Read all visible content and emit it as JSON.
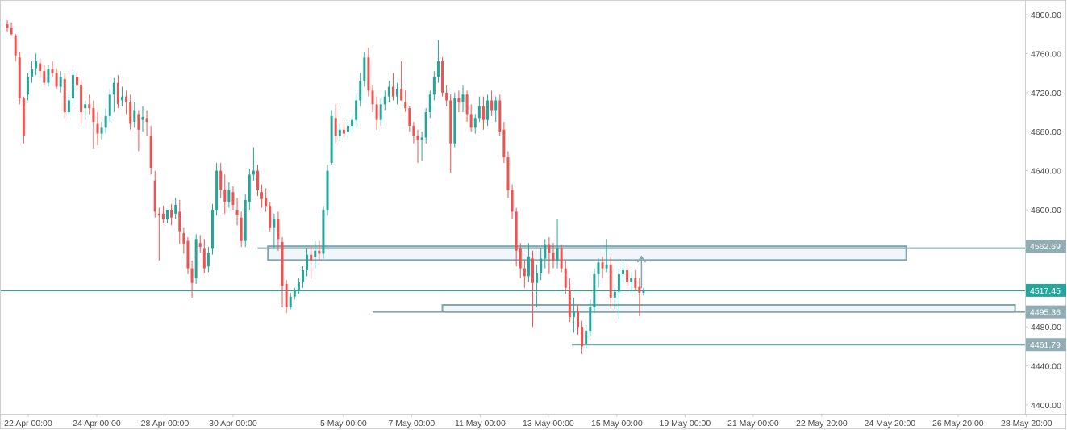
{
  "colors": {
    "up": "#26a69a",
    "down": "#ef5350",
    "line": "#7fa7ad",
    "zone_fill": "#edf2f7",
    "current_line": "#26a69a",
    "badge_line": "#8fadb3",
    "badge_current": "#26a69a",
    "axis_text": "#4a4a4a",
    "axis_border": "#cfcfcf"
  },
  "chart_data": {
    "type": "candlestick",
    "title": "",
    "xlabel": "",
    "ylabel": "",
    "ylim": [
      4395,
      4812
    ],
    "grid": false,
    "y_ticks": [
      "4800.00",
      "4760.00",
      "4720.00",
      "4680.00",
      "4640.00",
      "4600.00",
      "4560.00",
      "4520.00",
      "4480.00",
      "4440.00",
      "4400.00"
    ],
    "x_ticks": [
      "22 Apr 00:00",
      "24 Apr 00:00",
      "28 Apr 00:00",
      "30 Apr 00:00",
      "5 May 00:00",
      "7 May 00:00",
      "11 May 00:00",
      "13 May 00:00",
      "15 May 00:00",
      "19 May 00:00",
      "21 May 00:00",
      "22 May 20:00",
      "24 May 20:00",
      "26 May 20:00",
      "28 May 20:00"
    ],
    "x_tick_bars": [
      5.1,
      21.8,
      38.4,
      55.0,
      81.9,
      98.5,
      115.2,
      131.8,
      148.5,
      165.1,
      181.7,
      198.4,
      215.0,
      231.6,
      248.3
    ],
    "candles": [
      [
        4790,
        4794,
        4782,
        4786
      ],
      [
        4786,
        4792,
        4778,
        4780
      ],
      [
        4778,
        4780,
        4752,
        4758
      ],
      [
        4756,
        4762,
        4708,
        4714
      ],
      [
        4714,
        4716,
        4668,
        4676
      ],
      [
        4718,
        4740,
        4712,
        4736
      ],
      [
        4736,
        4752,
        4730,
        4744
      ],
      [
        4745,
        4760,
        4738,
        4752
      ],
      [
        4750,
        4755,
        4735,
        4742
      ],
      [
        4742,
        4748,
        4728,
        4730
      ],
      [
        4730,
        4748,
        4726,
        4744
      ],
      [
        4744,
        4752,
        4736,
        4740
      ],
      [
        4740,
        4745,
        4724,
        4726
      ],
      [
        4726,
        4742,
        4720,
        4736
      ],
      [
        4734,
        4740,
        4694,
        4700
      ],
      [
        4700,
        4718,
        4696,
        4712
      ],
      [
        4714,
        4744,
        4708,
        4738
      ],
      [
        4736,
        4742,
        4722,
        4728
      ],
      [
        4728,
        4734,
        4688,
        4700
      ],
      [
        4704,
        4712,
        4692,
        4708
      ],
      [
        4708,
        4718,
        4698,
        4704
      ],
      [
        4704,
        4712,
        4662,
        4690
      ],
      [
        4688,
        4700,
        4666,
        4678
      ],
      [
        4678,
        4690,
        4672,
        4684
      ],
      [
        4684,
        4704,
        4678,
        4696
      ],
      [
        4696,
        4724,
        4690,
        4718
      ],
      [
        4718,
        4735,
        4700,
        4730
      ],
      [
        4730,
        4738,
        4704,
        4708
      ],
      [
        4712,
        4726,
        4706,
        4716
      ],
      [
        4716,
        4722,
        4698,
        4710
      ],
      [
        4710,
        4718,
        4682,
        4688
      ],
      [
        4690,
        4710,
        4684,
        4702
      ],
      [
        4698,
        4702,
        4660,
        4682
      ],
      [
        4692,
        4706,
        4680,
        4695
      ],
      [
        4694,
        4702,
        4676,
        4690
      ],
      [
        4676,
        4686,
        4636,
        4643
      ],
      [
        4630,
        4640,
        4592,
        4598
      ],
      [
        4596,
        4602,
        4548,
        4594
      ],
      [
        4596,
        4604,
        4586,
        4590
      ],
      [
        4590,
        4600,
        4586,
        4600
      ],
      [
        4600,
        4606,
        4584,
        4592
      ],
      [
        4596,
        4612,
        4590,
        4605
      ],
      [
        4598,
        4610,
        4565,
        4578
      ],
      [
        4576,
        4582,
        4555,
        4565
      ],
      [
        4568,
        4572,
        4534,
        4540
      ],
      [
        4540,
        4548,
        4510,
        4525
      ],
      [
        4530,
        4575,
        4524,
        4570
      ],
      [
        4566,
        4574,
        4556,
        4562
      ],
      [
        4560,
        4570,
        4535,
        4540
      ],
      [
        4542,
        4562,
        4536,
        4556
      ],
      [
        4560,
        4606,
        4554,
        4600
      ],
      [
        4600,
        4648,
        4594,
        4640
      ],
      [
        4640,
        4648,
        4612,
        4620
      ],
      [
        4620,
        4636,
        4596,
        4608
      ],
      [
        4608,
        4628,
        4602,
        4620
      ],
      [
        4618,
        4624,
        4600,
        4605
      ],
      [
        4600,
        4612,
        4584,
        4595
      ],
      [
        4592,
        4598,
        4562,
        4568
      ],
      [
        4568,
        4616,
        4562,
        4610
      ],
      [
        4608,
        4642,
        4600,
        4636
      ],
      [
        4636,
        4664,
        4630,
        4640
      ],
      [
        4640,
        4646,
        4614,
        4620
      ],
      [
        4618,
        4626,
        4602,
        4611
      ],
      [
        4612,
        4622,
        4598,
        4604
      ],
      [
        4604,
        4608,
        4578,
        4582
      ],
      [
        4582,
        4596,
        4560,
        4590
      ],
      [
        4590,
        4598,
        4558,
        4570
      ],
      [
        4567,
        4572,
        4500,
        4522
      ],
      [
        4524,
        4528,
        4494,
        4500
      ],
      [
        4500,
        4515,
        4498,
        4511
      ],
      [
        4511,
        4520,
        4508,
        4518
      ],
      [
        4518,
        4530,
        4514,
        4526
      ],
      [
        4526,
        4542,
        4520,
        4538
      ],
      [
        4538,
        4560,
        4532,
        4554
      ],
      [
        4554,
        4563,
        4530,
        4548
      ],
      [
        4552,
        4568,
        4540,
        4558
      ],
      [
        4558,
        4568,
        4548,
        4555
      ],
      [
        4555,
        4604,
        4550,
        4600
      ],
      [
        4600,
        4646,
        4594,
        4640
      ],
      [
        4648,
        4702,
        4646,
        4696
      ],
      [
        4694,
        4708,
        4668,
        4676
      ],
      [
        4676,
        4688,
        4670,
        4682
      ],
      [
        4682,
        4690,
        4674,
        4678
      ],
      [
        4680,
        4692,
        4672,
        4686
      ],
      [
        4686,
        4698,
        4680,
        4692
      ],
      [
        4692,
        4720,
        4684,
        4712
      ],
      [
        4712,
        4740,
        4706,
        4732
      ],
      [
        4732,
        4762,
        4726,
        4756
      ],
      [
        4756,
        4766,
        4716,
        4722
      ],
      [
        4722,
        4728,
        4700,
        4708
      ],
      [
        4708,
        4716,
        4682,
        4692
      ],
      [
        4692,
        4714,
        4686,
        4708
      ],
      [
        4708,
        4722,
        4702,
        4716
      ],
      [
        4716,
        4732,
        4710,
        4726
      ],
      [
        4726,
        4740,
        4712,
        4716
      ],
      [
        4716,
        4730,
        4708,
        4724
      ],
      [
        4724,
        4752,
        4716,
        4712
      ],
      [
        4710,
        4722,
        4700,
        4704
      ],
      [
        4704,
        4706,
        4680,
        4686
      ],
      [
        4686,
        4690,
        4668,
        4676
      ],
      [
        4676,
        4682,
        4648,
        4672
      ],
      [
        4672,
        4680,
        4650,
        4674
      ],
      [
        4674,
        4704,
        4668,
        4700
      ],
      [
        4700,
        4722,
        4694,
        4718
      ],
      [
        4718,
        4742,
        4712,
        4736
      ],
      [
        4736,
        4774,
        4730,
        4752
      ],
      [
        4752,
        4756,
        4716,
        4720
      ],
      [
        4720,
        4728,
        4706,
        4712
      ],
      [
        4712,
        4718,
        4638,
        4668
      ],
      [
        4668,
        4720,
        4664,
        4714
      ],
      [
        4714,
        4722,
        4700,
        4710
      ],
      [
        4710,
        4728,
        4700,
        4718
      ],
      [
        4718,
        4722,
        4690,
        4698
      ],
      [
        4698,
        4708,
        4680,
        4684
      ],
      [
        4684,
        4698,
        4678,
        4694
      ],
      [
        4694,
        4716,
        4690,
        4706
      ],
      [
        4706,
        4716,
        4682,
        4692
      ],
      [
        4692,
        4718,
        4686,
        4712
      ],
      [
        4712,
        4722,
        4696,
        4702
      ],
      [
        4702,
        4716,
        4690,
        4712
      ],
      [
        4712,
        4718,
        4676,
        4680
      ],
      [
        4682,
        4690,
        4648,
        4654
      ],
      [
        4654,
        4660,
        4612,
        4620
      ],
      [
        4620,
        4626,
        4590,
        4598
      ],
      [
        4598,
        4602,
        4542,
        4558
      ],
      [
        4560,
        4566,
        4530,
        4540
      ],
      [
        4540,
        4548,
        4520,
        4532
      ],
      [
        4532,
        4566,
        4526,
        4552
      ],
      [
        4550,
        4558,
        4480,
        4525
      ],
      [
        4525,
        4544,
        4500,
        4535
      ],
      [
        4535,
        4560,
        4528,
        4550
      ],
      [
        4550,
        4570,
        4540,
        4564
      ],
      [
        4564,
        4572,
        4534,
        4556
      ],
      [
        4556,
        4566,
        4540,
        4548
      ],
      [
        4548,
        4590,
        4540,
        4560
      ],
      [
        4560,
        4564,
        4536,
        4540
      ],
      [
        4540,
        4548,
        4514,
        4520
      ],
      [
        4518,
        4530,
        4485,
        4490
      ],
      [
        4490,
        4510,
        4474,
        4496
      ],
      [
        4496,
        4502,
        4472,
        4480
      ],
      [
        4480,
        4486,
        4452,
        4460
      ],
      [
        4462,
        4482,
        4458,
        4476
      ],
      [
        4476,
        4508,
        4470,
        4500
      ],
      [
        4500,
        4540,
        4494,
        4534
      ],
      [
        4534,
        4550,
        4520,
        4546
      ],
      [
        4546,
        4552,
        4530,
        4540
      ],
      [
        4540,
        4570,
        4536,
        4544
      ],
      [
        4544,
        4552,
        4500,
        4510
      ],
      [
        4510,
        4520,
        4498,
        4516
      ],
      [
        4516,
        4540,
        4488,
        4534
      ],
      [
        4534,
        4548,
        4526,
        4538
      ],
      [
        4538,
        4544,
        4522,
        4526
      ],
      [
        4526,
        4536,
        4516,
        4530
      ],
      [
        4530,
        4538,
        4518,
        4520
      ],
      [
        4521,
        4530,
        4491,
        4515
      ],
      [
        4515,
        4520,
        4512,
        4518
      ]
    ],
    "current_price": 4517.45,
    "price_badges": [
      {
        "label": "4562.69",
        "value": 4562.69,
        "kind": "line"
      },
      {
        "label": "4517.45",
        "value": 4517.45,
        "kind": "current"
      },
      {
        "label": "4495.36",
        "value": 4495.36,
        "kind": "line"
      },
      {
        "label": "4461.79",
        "value": 4461.79,
        "kind": "line"
      }
    ],
    "annotations": {
      "zones": [
        {
          "bar_start": 63.5,
          "bar_end": 219.0,
          "top": 4562.69,
          "bottom": 4548.5
        },
        {
          "bar_start": 106.0,
          "bar_end": 245.5,
          "top": 4502.5,
          "bottom": 4495.36
        }
      ],
      "h_lines": [
        {
          "bar_start": 61.0,
          "value": 4560.6
        },
        {
          "bar_start": 89.0,
          "value": 4495.36
        },
        {
          "bar_start": 137.5,
          "value": 4461.79
        }
      ],
      "arrow": {
        "bar": 154.5,
        "from": 4519.5,
        "to": 4552.0
      }
    }
  }
}
